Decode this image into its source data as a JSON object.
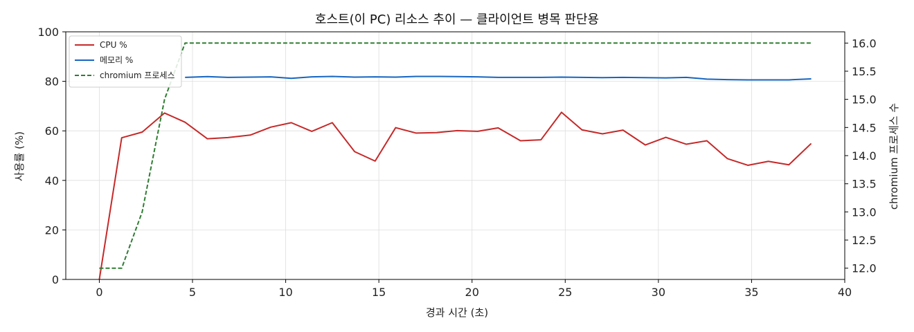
{
  "chart_data": {
    "type": "line",
    "title": "호스트(이 PC) 리소스 추이 — 클라이언트 병목 판단용",
    "xlabel": "경과 시간 (초)",
    "ylabel": "사용률 (%)",
    "y2label": "chromium 프로세스 수",
    "xlim": [
      -1.8,
      40
    ],
    "ylim": [
      0,
      100
    ],
    "y2lim": [
      11.8,
      16.2
    ],
    "xticks": [
      "0",
      "5",
      "10",
      "15",
      "20",
      "25",
      "30",
      "35",
      "40"
    ],
    "yticks": [
      "0",
      "20",
      "40",
      "60",
      "80",
      "100"
    ],
    "y2ticks": [
      "12.0",
      "12.5",
      "13.0",
      "13.5",
      "14.0",
      "14.5",
      "15.0",
      "15.5",
      "16.0"
    ],
    "grid": true,
    "legend_position": "top-left",
    "x": [
      0,
      1.2,
      2.3,
      3.5,
      4.6,
      5.8,
      6.9,
      8.1,
      9.2,
      10.3,
      11.4,
      12.5,
      13.7,
      14.8,
      15.9,
      17.0,
      18.1,
      19.2,
      20.3,
      21.4,
      22.6,
      23.7,
      24.8,
      25.9,
      27.0,
      28.1,
      29.3,
      30.4,
      31.5,
      32.6,
      33.7,
      34.8,
      35.9,
      37.0,
      38.2
    ],
    "series": [
      {
        "name": "CPU %",
        "color": "#c62828",
        "style": "solid",
        "axis": "left",
        "values": [
          0,
          57.2,
          59.5,
          67.2,
          63.5,
          56.8,
          57.3,
          58.3,
          61.5,
          63.3,
          59.8,
          63.3,
          51.6,
          47.8,
          61.3,
          59.1,
          59.3,
          60.1,
          59.8,
          61.2,
          56.0,
          56.4,
          67.5,
          60.4,
          58.8,
          60.3,
          54.3,
          57.4,
          54.6,
          56.0,
          48.8,
          46.1,
          47.7,
          46.3,
          54.9
        ]
      },
      {
        "name": "메모리 %",
        "color": "#1565c0",
        "style": "solid",
        "axis": "left",
        "values": [
          null,
          null,
          null,
          null,
          81.6,
          81.9,
          81.6,
          81.7,
          81.8,
          81.2,
          81.8,
          82.0,
          81.7,
          81.8,
          81.7,
          82.0,
          82.0,
          81.9,
          81.8,
          81.6,
          81.6,
          81.6,
          81.7,
          81.6,
          81.5,
          81.6,
          81.5,
          81.4,
          81.6,
          80.9,
          80.7,
          80.6,
          80.6,
          80.6,
          81.0
        ]
      },
      {
        "name": "chromium 프로세스",
        "color": "#2e7d32",
        "style": "dashed",
        "axis": "right",
        "values": [
          12,
          12,
          13,
          15,
          16,
          16,
          16,
          16,
          16,
          16,
          16,
          16,
          16,
          16,
          16,
          16,
          16,
          16,
          16,
          16,
          16,
          16,
          16,
          16,
          16,
          16,
          16,
          16,
          16,
          16,
          16,
          16,
          16,
          16,
          16
        ]
      }
    ]
  }
}
